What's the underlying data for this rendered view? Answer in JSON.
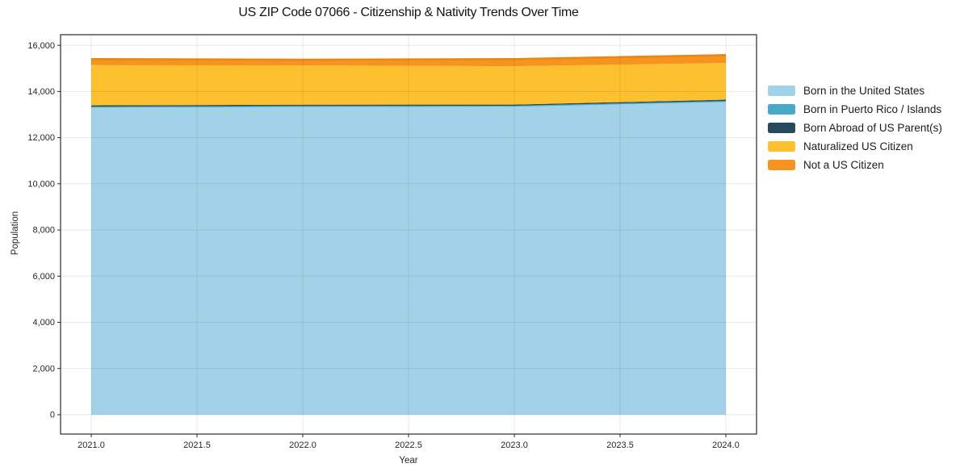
{
  "chart_data": {
    "type": "area",
    "stacked": true,
    "title": "US ZIP Code 07066 - Citizenship & Nativity Trends Over Time",
    "xlabel": "Year",
    "ylabel": "Population",
    "x": [
      2021,
      2022,
      2023,
      2024
    ],
    "series": [
      {
        "name": "Born in the United States",
        "color": "#a2d2e7",
        "values": [
          13300,
          13330,
          13340,
          13545
        ]
      },
      {
        "name": "Born in Puerto Rico / Islands",
        "color": "#47aac8",
        "values": [
          45,
          45,
          45,
          45
        ]
      },
      {
        "name": "Born Abroad of US Parent(s)",
        "color": "#274a5d",
        "values": [
          55,
          55,
          50,
          55
        ]
      },
      {
        "name": "Naturalized US Citizen",
        "color": "#fdc130",
        "values": [
          1740,
          1700,
          1660,
          1590
        ]
      },
      {
        "name": "Not a US Citizen",
        "color": "#f7941f",
        "values": [
          300,
          280,
          340,
          375
        ]
      }
    ],
    "totals": [
      15440,
      15410,
      15430,
      15610
    ],
    "xlim": [
      2020.855,
      2024.145
    ],
    "ylim": [
      -840,
      16460
    ],
    "xticks": [
      2021.0,
      2021.5,
      2022.0,
      2022.5,
      2023.0,
      2023.5,
      2024.0
    ],
    "yticks": [
      0,
      2000,
      4000,
      6000,
      8000,
      10000,
      12000,
      14000,
      16000
    ],
    "grid": true,
    "grid_color": "rgba(0,0,0,0.09)",
    "frame_color": "#2a2a2a",
    "tick_label_color": "#262626",
    "top_edge_color": "#ea870f",
    "legend_position": "right"
  }
}
